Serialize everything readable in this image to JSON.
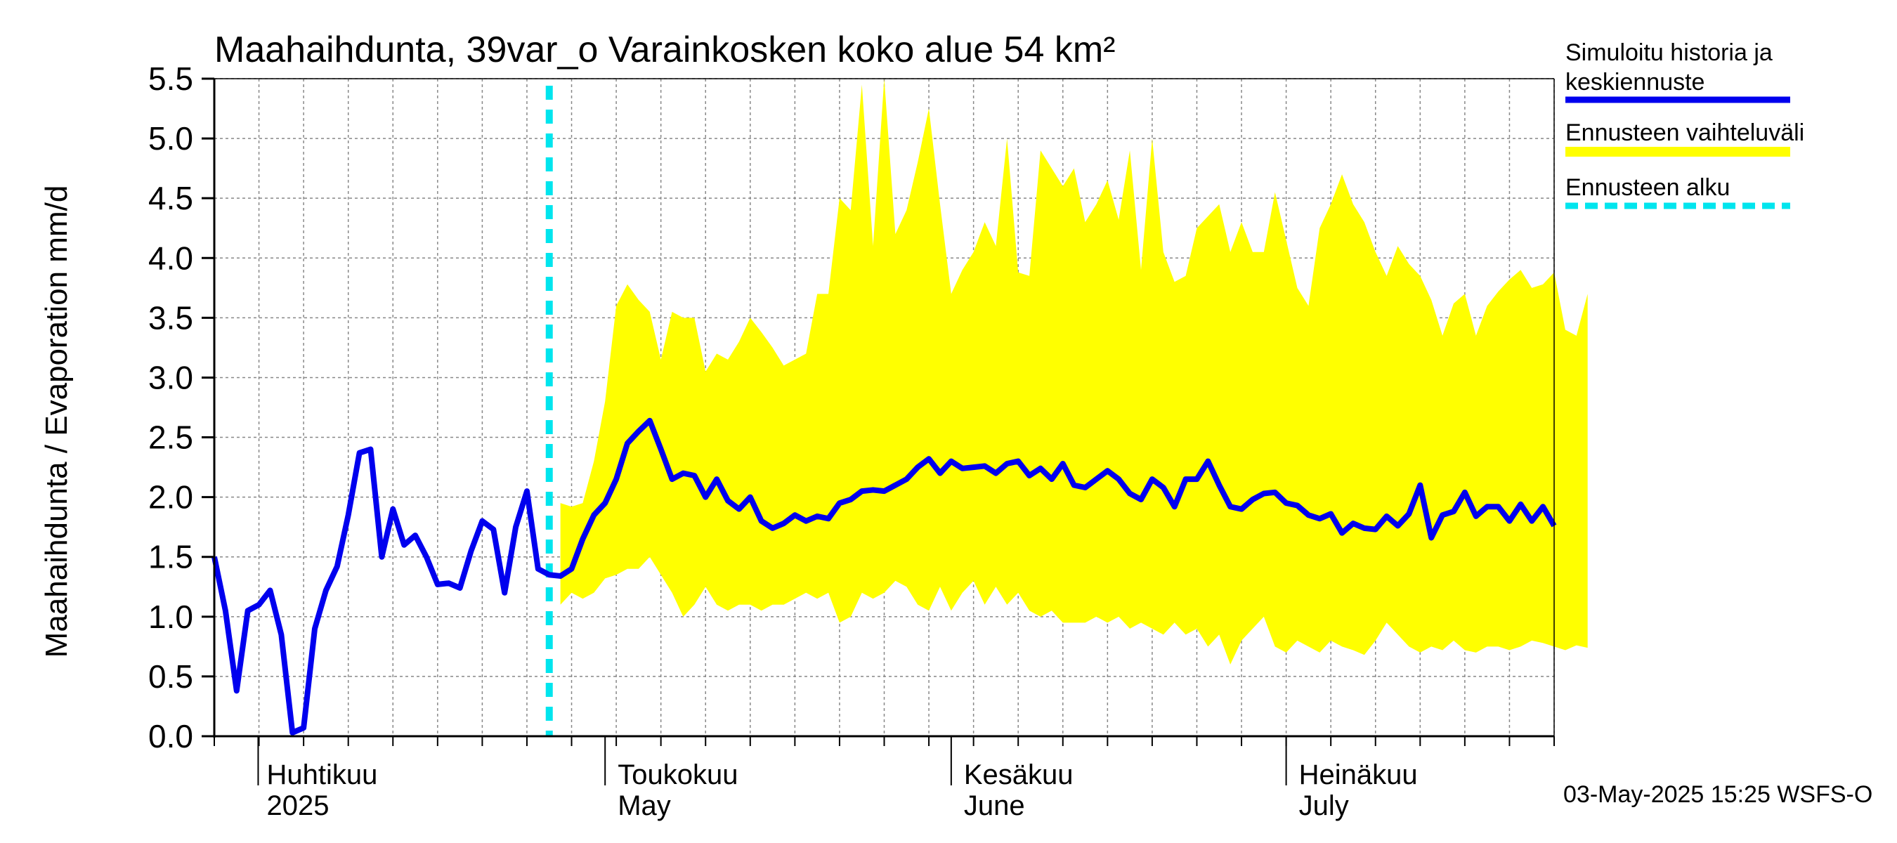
{
  "chart_data": {
    "type": "area",
    "title": "Maahaihdunta, 39var_o Varainkosken koko alue 54 km²",
    "ylabel": "Maahaihdunta / Evaporation   mm/d",
    "ylim": [
      0,
      5.5
    ],
    "yticks": [
      "0.0",
      "0.5",
      "1.0",
      "1.5",
      "2.0",
      "2.5",
      "3.0",
      "3.5",
      "4.0",
      "4.5",
      "5.0",
      "5.5"
    ],
    "x_start": "2025-03-27",
    "x_days": 120,
    "forecast_start_day": 30,
    "months": [
      {
        "fi": "Huhtikuu",
        "en": "2025",
        "day": 5
      },
      {
        "fi": "Toukokuu",
        "en": "May",
        "day": 35
      },
      {
        "fi": "Kesäkuu",
        "en": "June",
        "day": 66
      },
      {
        "fi": "Heinäkuu",
        "en": "July",
        "day": 96
      }
    ],
    "month_boundaries": [
      5,
      35,
      66,
      96
    ],
    "series": [
      {
        "name": "Simuloitu historia ja keskiennuste",
        "color": "#0000ee",
        "values": [
          1.5,
          1.05,
          0.38,
          1.05,
          1.1,
          1.22,
          0.85,
          0.03,
          0.07,
          0.9,
          1.22,
          1.42,
          1.85,
          2.37,
          2.4,
          1.5,
          1.9,
          1.6,
          1.68,
          1.5,
          1.27,
          1.28,
          1.24,
          1.55,
          1.8,
          1.73,
          1.2,
          1.75,
          2.05,
          1.4,
          1.35,
          1.34,
          1.4,
          1.65,
          1.85,
          1.95,
          2.15,
          2.45,
          2.55,
          2.64,
          2.4,
          2.15,
          2.2,
          2.18,
          2.0,
          2.15,
          1.97,
          1.9,
          2.0,
          1.8,
          1.74,
          1.78,
          1.85,
          1.8,
          1.84,
          1.82,
          1.95,
          1.98,
          2.05,
          2.06,
          2.05,
          2.1,
          2.15,
          2.25,
          2.32,
          2.2,
          2.3,
          2.24,
          2.25,
          2.26,
          2.2,
          2.28,
          2.3,
          2.18,
          2.24,
          2.15,
          2.28,
          2.1,
          2.08,
          2.15,
          2.22,
          2.15,
          2.03,
          1.98,
          2.15,
          2.08,
          1.92,
          2.15,
          2.15,
          2.3,
          2.1,
          1.92,
          1.9,
          1.98,
          2.03,
          2.04,
          1.95,
          1.93,
          1.85,
          1.82,
          1.86,
          1.7,
          1.78,
          1.74,
          1.73,
          1.84,
          1.76,
          1.86,
          2.1,
          1.66,
          1.85,
          1.88,
          2.04,
          1.84,
          1.92,
          1.92,
          1.8,
          1.94,
          1.8,
          1.92,
          1.76
        ]
      },
      {
        "name": "Ennusteen vaihteluväli",
        "color": "#ffff00",
        "x_from_day": 31,
        "upper": [
          1.95,
          1.92,
          1.95,
          2.3,
          2.8,
          3.6,
          3.78,
          3.65,
          3.55,
          3.15,
          3.55,
          3.5,
          3.5,
          3.05,
          3.2,
          3.15,
          3.3,
          3.5,
          3.38,
          3.25,
          3.1,
          3.15,
          3.2,
          3.7,
          3.7,
          4.5,
          4.4,
          5.45,
          4.1,
          5.5,
          4.2,
          4.4,
          4.8,
          5.25,
          4.45,
          3.7,
          3.9,
          4.05,
          4.3,
          4.1,
          5.0,
          3.88,
          3.85,
          4.9,
          4.75,
          4.6,
          4.75,
          4.3,
          4.45,
          4.65,
          4.32,
          4.9,
          3.9,
          5.0,
          4.05,
          3.8,
          3.85,
          4.25,
          4.35,
          4.45,
          4.05,
          4.3,
          4.05,
          4.05,
          4.55,
          4.15,
          3.75,
          3.6,
          4.25,
          4.45,
          4.7,
          4.45,
          4.3,
          4.05,
          3.85,
          4.1,
          3.95,
          3.85,
          3.65,
          3.35,
          3.62,
          3.7,
          3.35,
          3.6,
          3.72,
          3.82,
          3.9,
          3.75,
          3.78,
          3.88,
          3.4,
          3.35,
          3.7
        ],
        "lower": [
          1.1,
          1.2,
          1.15,
          1.2,
          1.32,
          1.35,
          1.4,
          1.4,
          1.5,
          1.35,
          1.2,
          1.0,
          1.1,
          1.25,
          1.1,
          1.05,
          1.1,
          1.1,
          1.05,
          1.1,
          1.1,
          1.15,
          1.2,
          1.15,
          1.2,
          0.95,
          1.0,
          1.2,
          1.15,
          1.2,
          1.3,
          1.25,
          1.1,
          1.05,
          1.25,
          1.05,
          1.2,
          1.3,
          1.1,
          1.25,
          1.1,
          1.2,
          1.05,
          1.0,
          1.05,
          0.95,
          0.95,
          0.95,
          1.0,
          0.95,
          1.0,
          0.9,
          0.95,
          0.9,
          0.85,
          0.95,
          0.85,
          0.9,
          0.75,
          0.85,
          0.6,
          0.8,
          0.9,
          1.0,
          0.75,
          0.7,
          0.8,
          0.75,
          0.7,
          0.8,
          0.75,
          0.72,
          0.68,
          0.8,
          0.95,
          0.85,
          0.75,
          0.7,
          0.75,
          0.72,
          0.8,
          0.72,
          0.7,
          0.75,
          0.75,
          0.72,
          0.75,
          0.8,
          0.78,
          0.75,
          0.72,
          0.76,
          0.74
        ]
      },
      {
        "name": "Ennusteen alku",
        "color": "#00e5ee",
        "day": 30
      }
    ],
    "legend": {
      "placement": "right",
      "items": [
        {
          "line1": "Simuloitu historia ja",
          "line2": "keskiennuste",
          "color": "#0000ee",
          "style": "solid"
        },
        {
          "line1": "Ennusteen vaihteluväli",
          "line2": "",
          "color": "#ffff00",
          "style": "solid"
        },
        {
          "line1": "Ennusteen alku",
          "line2": "",
          "color": "#00e5ee",
          "style": "dashed"
        }
      ]
    },
    "footer": "03-May-2025 15:25 WSFS-O"
  }
}
